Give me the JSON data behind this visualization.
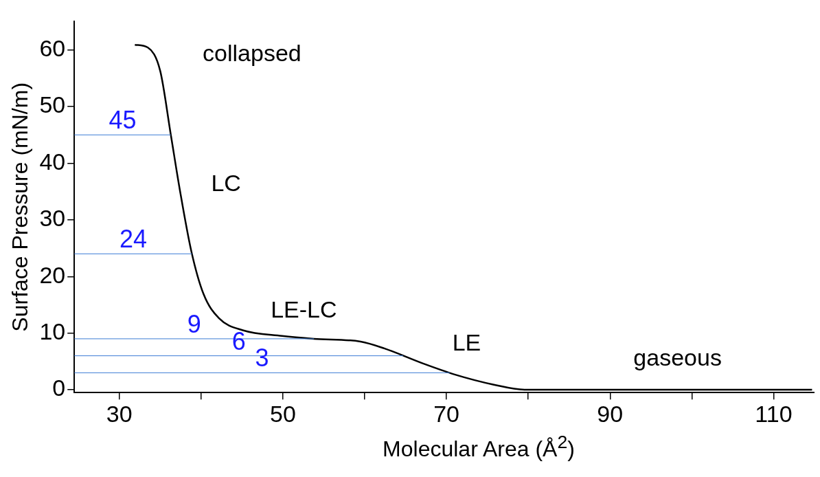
{
  "chart_data": {
    "type": "line",
    "xlabel": "Molecular Area (Å$^{2}$)",
    "ylabel": "Surface Pressure (mN/m)",
    "x": [
      31.9,
      33.5,
      35,
      36.3,
      37.4,
      38.8,
      40.3,
      42.2,
      45.1,
      49.9,
      53.8,
      59.5,
      62.4,
      67.2,
      71,
      75.8,
      79.7,
      90,
      100,
      114.7
    ],
    "series": [
      {
        "color": "#000000",
        "values": [
          60.9,
          60.4,
          56.3,
          45,
          35.3,
          24.5,
          16.9,
          12.6,
          10.5,
          9.5,
          9.0,
          8.5,
          7.3,
          4.6,
          2.7,
          0.9,
          0,
          0,
          0,
          0
        ]
      }
    ],
    "xlim": [
      24.5,
      115
    ],
    "ylim": [
      -0.5,
      65
    ],
    "xticks": [
      30,
      {
        "value": 40,
        "label": null
      },
      50,
      {
        "value": 60,
        "label": null
      },
      70,
      {
        "value": 80,
        "label": null
      },
      90,
      {
        "value": 100,
        "label": null
      },
      110
    ],
    "yticks": [
      0,
      10,
      20,
      30,
      40,
      50,
      60
    ],
    "grid": false,
    "legend": false,
    "marker": "none",
    "line_style": "solid",
    "ref_lines": [
      {
        "axis": "y",
        "value": 45,
        "label": "45",
        "color": "#3a7bd5"
      },
      {
        "axis": "y",
        "value": 24,
        "label": "24",
        "color": "#3a7bd5"
      },
      {
        "axis": "y",
        "value": 9,
        "label": "9",
        "color": "#3a7bd5"
      },
      {
        "axis": "y",
        "value": 6,
        "label": "6",
        "color": "#3a7bd5"
      },
      {
        "axis": "y",
        "value": 3,
        "label": "3",
        "color": "#3a7bd5"
      }
    ],
    "annotations": [
      "collapsed",
      "LC",
      "LE-LC",
      "LE",
      "gaseous"
    ]
  }
}
